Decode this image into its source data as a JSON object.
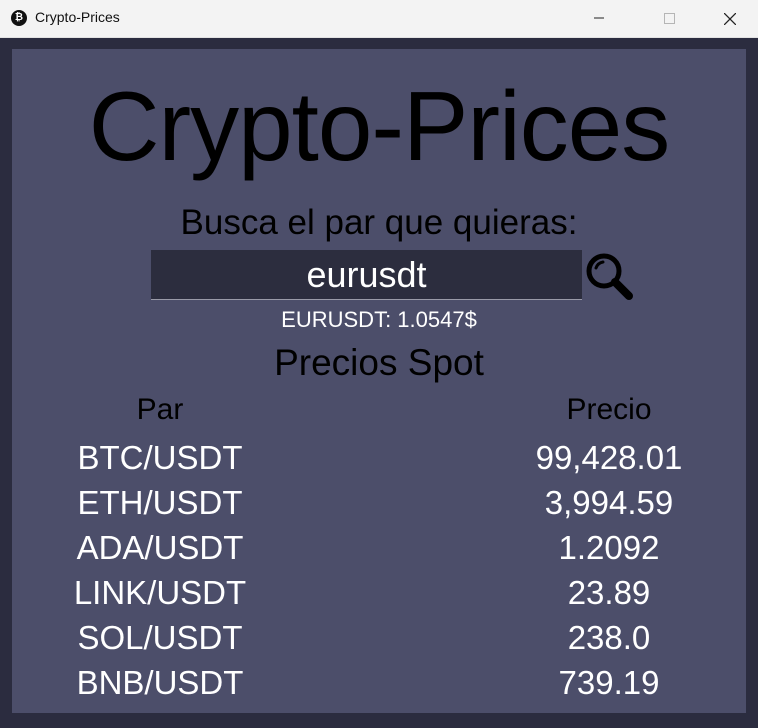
{
  "window": {
    "title": "Crypto-Prices",
    "app_icon": "bitcoin-icon",
    "app_icon_glyph": "₿"
  },
  "main": {
    "title": "Crypto-Prices",
    "search_label": "Busca el par que quieras:",
    "search_value": "eurusdt",
    "search_icon": "magnifier-icon",
    "result": "EURUSDT: 1.0547$",
    "section_title": "Precios Spot"
  },
  "table": {
    "headers": [
      "Par",
      "Precio"
    ],
    "rows": [
      {
        "pair": "BTC/USDT",
        "price": "99,428.01"
      },
      {
        "pair": "ETH/USDT",
        "price": "3,994.59"
      },
      {
        "pair": "ADA/USDT",
        "price": "1.2092"
      },
      {
        "pair": "LINK/USDT",
        "price": "23.89"
      },
      {
        "pair": "SOL/USDT",
        "price": "238.0"
      },
      {
        "pair": "BNB/USDT",
        "price": "739.19"
      }
    ]
  },
  "colors": {
    "titlebar": "#f3f3f3",
    "frame": "#2b2c3f",
    "panel": "#4c4e6a",
    "input_bg": "#2c2d3e",
    "heading_text": "#000000",
    "value_text": "#ffffff"
  }
}
